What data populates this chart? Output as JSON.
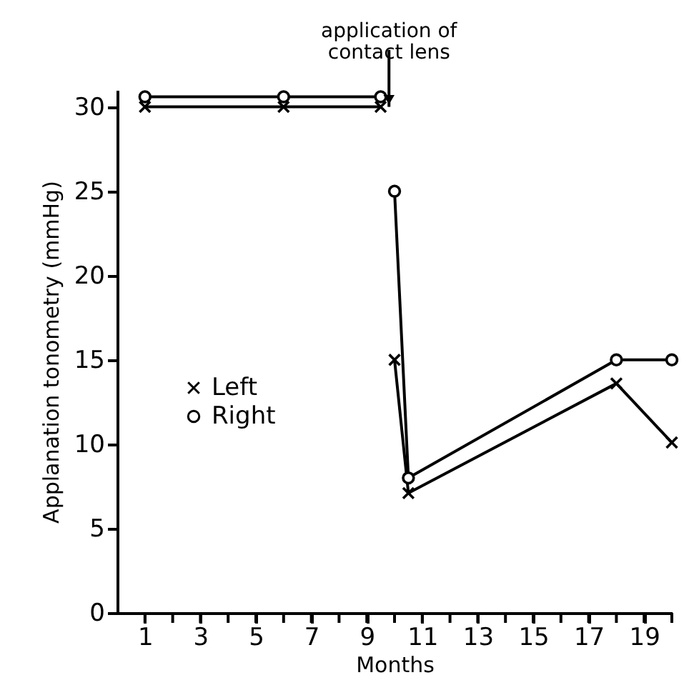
{
  "chart_data": {
    "type": "line",
    "xlabel": "Months",
    "ylabel": "Applanation tonometry (mmHg)",
    "xlim": [
      0,
      20
    ],
    "ylim": [
      0,
      31
    ],
    "xticks": [
      1,
      {
        "value": 2,
        "label": null
      },
      3,
      {
        "value": 4,
        "label": null
      },
      5,
      {
        "value": 6,
        "label": null
      },
      7,
      {
        "value": 8,
        "label": null
      },
      9,
      {
        "value": 10,
        "label": null
      },
      11,
      {
        "value": 12,
        "label": null
      },
      13,
      {
        "value": 14,
        "label": null
      },
      15,
      {
        "value": 16,
        "label": null
      },
      17,
      {
        "value": 18,
        "label": null
      },
      19,
      {
        "value": 20,
        "label": null
      }
    ],
    "yticks": [
      0,
      5,
      10,
      15,
      20,
      25,
      30
    ],
    "series": [
      {
        "name": "Left",
        "color": "#000000",
        "marker": "cross",
        "x": [
          1,
          6,
          9.5,
          9.8,
          10,
          10.5,
          18,
          20
        ],
        "values": [
          30,
          30,
          30,
          null,
          15,
          7.1,
          13.6,
          10.1
        ]
      },
      {
        "name": "Right",
        "color": "#000000",
        "marker": "circle",
        "x": [
          1,
          6,
          9.5,
          9.8,
          10,
          10.5,
          18,
          20
        ],
        "values": [
          30.6,
          30.6,
          30.6,
          null,
          25,
          8,
          15,
          15
        ]
      }
    ],
    "annotations": [
      {
        "text": "application of contact lens",
        "x": 9.8,
        "y": 30
      }
    ],
    "legend": "left",
    "grid": false,
    "line_style": "solid"
  }
}
